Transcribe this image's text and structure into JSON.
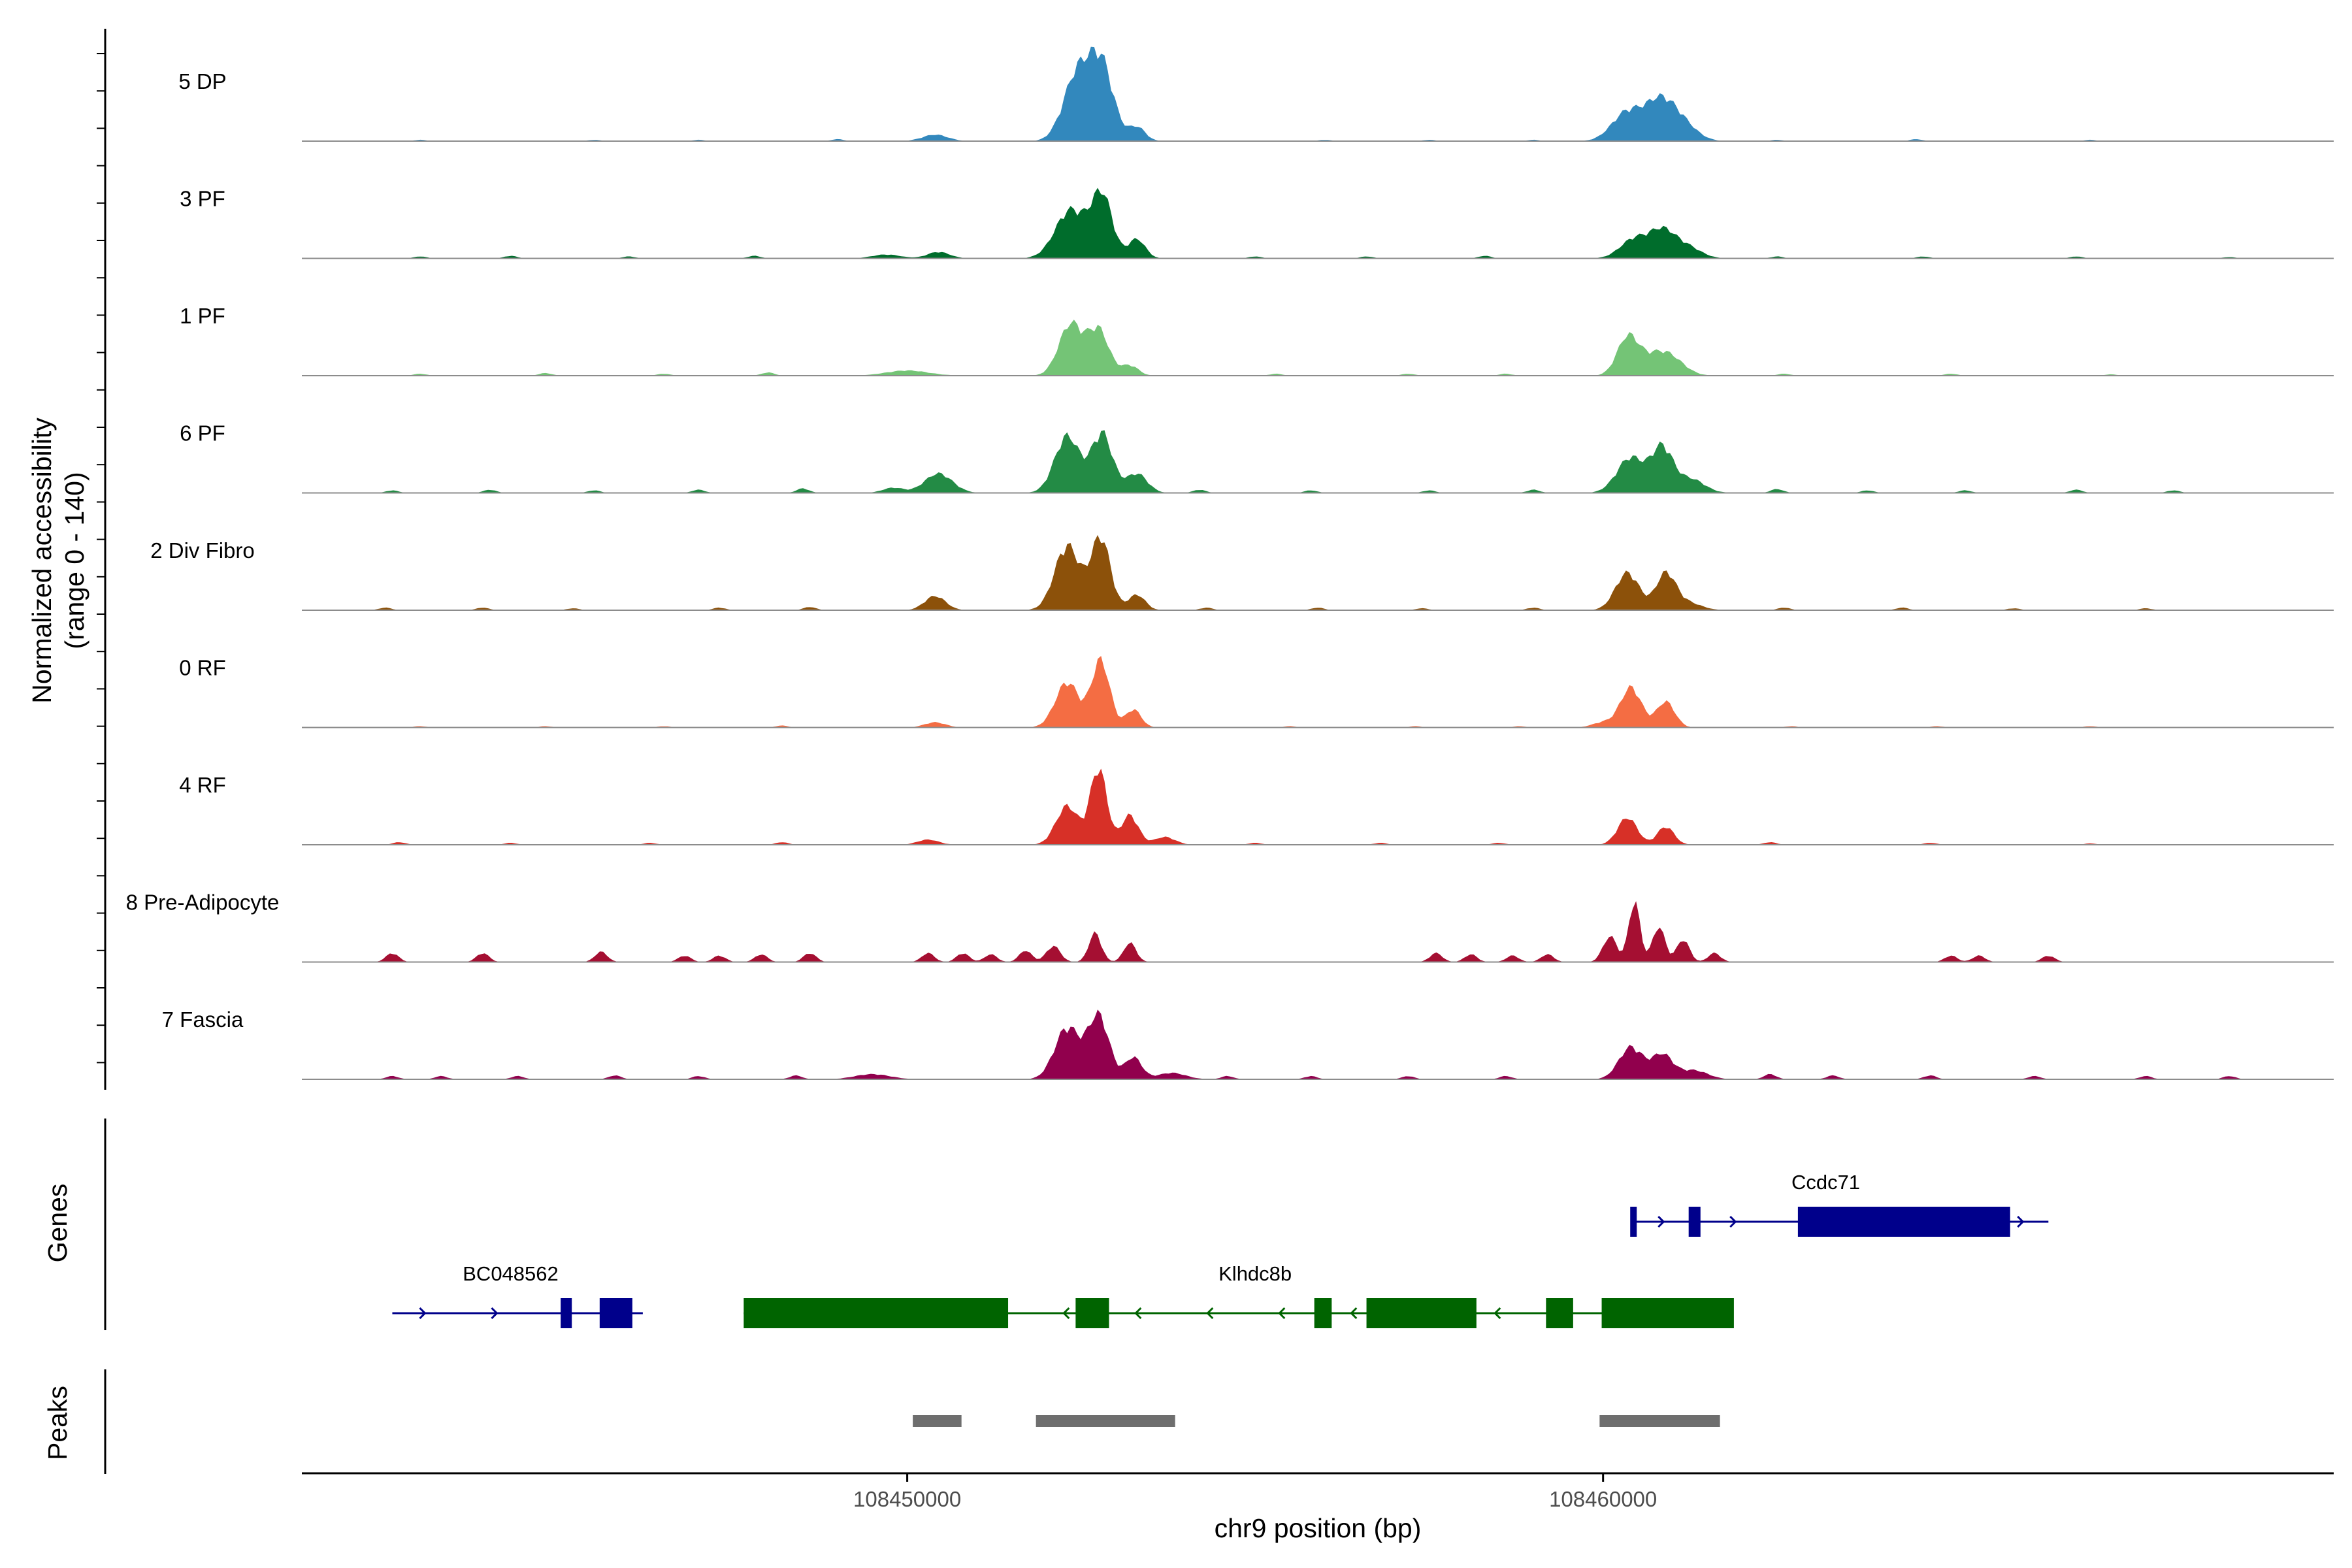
{
  "chart_data": {
    "type": "area",
    "title": "",
    "ylabel_line1": "Normalized accessibility",
    "ylabel_line2": "(range 0 - 140)",
    "y_range": [
      0,
      140
    ],
    "xlabel": "chr9 position (bp)",
    "x_range": [
      108441300,
      108470500
    ],
    "x_ticks": [
      108450000,
      108460000
    ],
    "x_tick_labels": [
      "108450000",
      "108460000"
    ],
    "genes_label": "Genes",
    "peaks_label": "Peaks",
    "tracks": [
      {
        "name": "5 DP",
        "color": "#3288BD",
        "peaks": [
          [
            108450400,
            10,
            180
          ],
          [
            108452450,
            105,
            200
          ],
          [
            108452800,
            110,
            170
          ],
          [
            108453300,
            22,
            120
          ],
          [
            108460350,
            45,
            220
          ],
          [
            108460800,
            52,
            200
          ],
          [
            108461100,
            30,
            220
          ]
        ],
        "bumps": [
          [
            108443000,
            2
          ],
          [
            108445500,
            2
          ],
          [
            108447000,
            2
          ],
          [
            108449000,
            3
          ],
          [
            108456000,
            2
          ],
          [
            108457500,
            2
          ],
          [
            108459000,
            2
          ],
          [
            108462500,
            2
          ],
          [
            108464500,
            3
          ],
          [
            108467000,
            2
          ]
        ]
      },
      {
        "name": "3 PF",
        "color": "#006D2C",
        "peaks": [
          [
            108449700,
            6,
            200
          ],
          [
            108450450,
            10,
            160
          ],
          [
            108452350,
            75,
            220
          ],
          [
            108452800,
            96,
            150
          ],
          [
            108453300,
            30,
            120
          ],
          [
            108460450,
            30,
            200
          ],
          [
            108460850,
            40,
            180
          ],
          [
            108461200,
            18,
            200
          ]
        ],
        "bumps": [
          [
            108443000,
            3
          ],
          [
            108444300,
            4
          ],
          [
            108446000,
            3
          ],
          [
            108447800,
            4
          ],
          [
            108455000,
            3
          ],
          [
            108456600,
            3
          ],
          [
            108458300,
            4
          ],
          [
            108462500,
            3
          ],
          [
            108464600,
            3
          ],
          [
            108466800,
            3
          ],
          [
            108469000,
            2
          ]
        ]
      },
      {
        "name": "1 PF",
        "color": "#74C476",
        "peaks": [
          [
            108450000,
            8,
            300
          ],
          [
            108452350,
            80,
            170
          ],
          [
            108452750,
            70,
            150
          ],
          [
            108453200,
            16,
            120
          ],
          [
            108460350,
            55,
            150
          ],
          [
            108460750,
            30,
            250
          ],
          [
            108461000,
            14,
            200
          ]
        ],
        "bumps": [
          [
            108443000,
            3
          ],
          [
            108444800,
            4
          ],
          [
            108446500,
            3
          ],
          [
            108448000,
            5
          ],
          [
            108455300,
            3
          ],
          [
            108457200,
            3
          ],
          [
            108458600,
            3
          ],
          [
            108462600,
            3
          ],
          [
            108465000,
            3
          ],
          [
            108467300,
            2
          ]
        ]
      },
      {
        "name": "6 PF",
        "color": "#238B45",
        "peaks": [
          [
            108450450,
            30,
            200
          ],
          [
            108449800,
            8,
            150
          ],
          [
            108452300,
            88,
            180
          ],
          [
            108452800,
            92,
            150
          ],
          [
            108453300,
            30,
            150
          ],
          [
            108460400,
            55,
            200
          ],
          [
            108460850,
            68,
            150
          ],
          [
            108461250,
            22,
            200
          ]
        ],
        "bumps": [
          [
            108442600,
            4
          ],
          [
            108444000,
            5
          ],
          [
            108445500,
            4
          ],
          [
            108447000,
            5
          ],
          [
            108448500,
            7
          ],
          [
            108454200,
            5
          ],
          [
            108455800,
            4
          ],
          [
            108457500,
            4
          ],
          [
            108459000,
            5
          ],
          [
            108462500,
            6
          ],
          [
            108463800,
            4
          ],
          [
            108465200,
            4
          ],
          [
            108466800,
            5
          ],
          [
            108468200,
            4
          ]
        ]
      },
      {
        "name": "2 Div Fibro",
        "color": "#8C510A",
        "peaks": [
          [
            108450400,
            22,
            150
          ],
          [
            108452300,
            100,
            180
          ],
          [
            108452780,
            112,
            140
          ],
          [
            108453300,
            24,
            120
          ],
          [
            108460350,
            58,
            170
          ],
          [
            108460900,
            55,
            140
          ],
          [
            108461200,
            12,
            200
          ]
        ],
        "bumps": [
          [
            108442500,
            4
          ],
          [
            108443900,
            4
          ],
          [
            108445200,
            3
          ],
          [
            108447300,
            4
          ],
          [
            108448600,
            5
          ],
          [
            108454300,
            4
          ],
          [
            108455900,
            4
          ],
          [
            108457400,
            3
          ],
          [
            108459000,
            4
          ],
          [
            108462600,
            4
          ],
          [
            108464300,
            4
          ],
          [
            108465900,
            3
          ],
          [
            108467800,
            3
          ]
        ]
      },
      {
        "name": "0 RF",
        "color": "#F46D43",
        "peaks": [
          [
            108450400,
            8,
            150
          ],
          [
            108452300,
            70,
            170
          ],
          [
            108452780,
            104,
            130
          ],
          [
            108453250,
            28,
            110
          ],
          [
            108460000,
            8,
            150
          ],
          [
            108460400,
            62,
            150
          ],
          [
            108460900,
            40,
            130
          ]
        ],
        "bumps": [
          [
            108443000,
            2
          ],
          [
            108444800,
            2
          ],
          [
            108446500,
            2
          ],
          [
            108448200,
            3
          ],
          [
            108455500,
            2
          ],
          [
            108457300,
            2
          ],
          [
            108458800,
            2
          ],
          [
            108462700,
            2
          ],
          [
            108464800,
            2
          ],
          [
            108467000,
            2
          ]
        ]
      },
      {
        "name": "4 RF",
        "color": "#D73027",
        "peaks": [
          [
            108450300,
            8,
            150
          ],
          [
            108452300,
            60,
            160
          ],
          [
            108452750,
            118,
            120
          ],
          [
            108453200,
            46,
            120
          ],
          [
            108453700,
            12,
            150
          ],
          [
            108460350,
            42,
            140
          ],
          [
            108460900,
            28,
            120
          ]
        ],
        "bumps": [
          [
            108442700,
            4
          ],
          [
            108444300,
            3
          ],
          [
            108446300,
            3
          ],
          [
            108448200,
            4
          ],
          [
            108455000,
            3
          ],
          [
            108456800,
            3
          ],
          [
            108458500,
            3
          ],
          [
            108462400,
            4
          ],
          [
            108464700,
            3
          ],
          [
            108467000,
            2
          ]
        ]
      },
      {
        "name": "8 Pre-Adipocyte",
        "color": "#A50F32",
        "peaks": [
          [
            108452100,
            25,
            100
          ],
          [
            108452700,
            45,
            90
          ],
          [
            108453200,
            30,
            90
          ],
          [
            108460100,
            40,
            100
          ],
          [
            108460450,
            95,
            80
          ],
          [
            108460800,
            55,
            90
          ],
          [
            108461150,
            35,
            90
          ]
        ],
        "bumps": [
          [
            108442600,
            14
          ],
          [
            108443900,
            14
          ],
          [
            108445600,
            16
          ],
          [
            108446800,
            10
          ],
          [
            108447300,
            10
          ],
          [
            108447900,
            12
          ],
          [
            108448600,
            14
          ],
          [
            108450300,
            14
          ],
          [
            108450800,
            14
          ],
          [
            108451200,
            12
          ],
          [
            108451700,
            18
          ],
          [
            108457600,
            14
          ],
          [
            108458100,
            12
          ],
          [
            108458700,
            10
          ],
          [
            108459200,
            12
          ],
          [
            108461600,
            14
          ],
          [
            108465000,
            10
          ],
          [
            108465400,
            10
          ],
          [
            108466400,
            10
          ]
        ]
      },
      {
        "name": "7 Fascia",
        "color": "#91004D",
        "peaks": [
          [
            108449500,
            8,
            250
          ],
          [
            108452300,
            80,
            180
          ],
          [
            108452750,
            98,
            150
          ],
          [
            108453250,
            34,
            120
          ],
          [
            108453800,
            10,
            200
          ],
          [
            108460400,
            50,
            170
          ],
          [
            108460850,
            38,
            150
          ],
          [
            108461300,
            14,
            200
          ]
        ],
        "bumps": [
          [
            108442600,
            5
          ],
          [
            108443300,
            5
          ],
          [
            108444400,
            5
          ],
          [
            108445800,
            6
          ],
          [
            108447000,
            5
          ],
          [
            108448400,
            6
          ],
          [
            108454600,
            5
          ],
          [
            108455800,
            5
          ],
          [
            108457200,
            5
          ],
          [
            108458600,
            5
          ],
          [
            108462400,
            8
          ],
          [
            108463300,
            6
          ],
          [
            108464700,
            6
          ],
          [
            108466200,
            5
          ],
          [
            108467800,
            5
          ],
          [
            108469000,
            5
          ]
        ]
      }
    ],
    "genes": [
      {
        "name": "BC048562",
        "strand": "+",
        "color": "#00008B",
        "row": 2,
        "start": 108442600,
        "end": 108446200,
        "exons": [
          [
            108445020,
            108445180
          ],
          [
            108445580,
            108446050
          ]
        ],
        "label_pos": 108444300
      },
      {
        "name": "Klhdc8b",
        "strand": "-",
        "color": "#006400",
        "row": 2,
        "start": 108447650,
        "end": 108461550,
        "exons": [
          [
            108447650,
            108451450
          ],
          [
            108452420,
            108452900
          ],
          [
            108455850,
            108456100
          ],
          [
            108456600,
            108458180
          ],
          [
            108459180,
            108459570
          ],
          [
            108459980,
            108461880
          ],
          [
            108461380,
            108461520
          ]
        ],
        "label_pos": 108455000
      },
      {
        "name": "Ccdc71",
        "strand": "+",
        "color": "#00008B",
        "row": 1,
        "start": 108460400,
        "end": 108466400,
        "exons": [
          [
            108460390,
            108460480
          ],
          [
            108461230,
            108461400
          ],
          [
            108462800,
            108465850
          ]
        ],
        "label_pos": 108463200
      }
    ],
    "peaks": [
      [
        108450080,
        108450780
      ],
      [
        108451850,
        108453850
      ],
      [
        108459950,
        108461680
      ]
    ]
  }
}
